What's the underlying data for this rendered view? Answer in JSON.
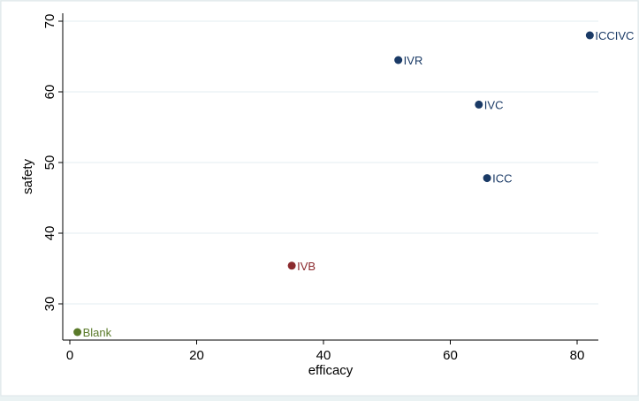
{
  "chart_data": {
    "type": "scatter",
    "title": "",
    "xlabel": "efficacy",
    "ylabel": "safety",
    "xlim": [
      0,
      83
    ],
    "ylim": [
      24,
      71
    ],
    "xticks": [
      0,
      20,
      40,
      60,
      80
    ],
    "yticks": [
      30,
      40,
      50,
      60,
      70
    ],
    "grid": "horizontal",
    "legend": "none",
    "points": [
      {
        "label": "Blank",
        "x": 1.2,
        "y": 26.0,
        "color": "#5a7a2a"
      },
      {
        "label": "IVB",
        "x": 35.0,
        "y": 35.4,
        "color": "#8b2a2e"
      },
      {
        "label": "IVR",
        "x": 51.8,
        "y": 64.5,
        "color": "#1a3a66"
      },
      {
        "label": "IVC",
        "x": 64.5,
        "y": 58.2,
        "color": "#1a3a66"
      },
      {
        "label": "ICC",
        "x": 65.8,
        "y": 47.8,
        "color": "#1a3a66"
      },
      {
        "label": "ICCIVC",
        "x": 82.0,
        "y": 68.0,
        "color": "#1a3a66"
      }
    ]
  },
  "colors": {
    "background": "#eaf2f3",
    "plot_area": "#ffffff",
    "grid": "#e3eef0",
    "axis": "#000000"
  }
}
